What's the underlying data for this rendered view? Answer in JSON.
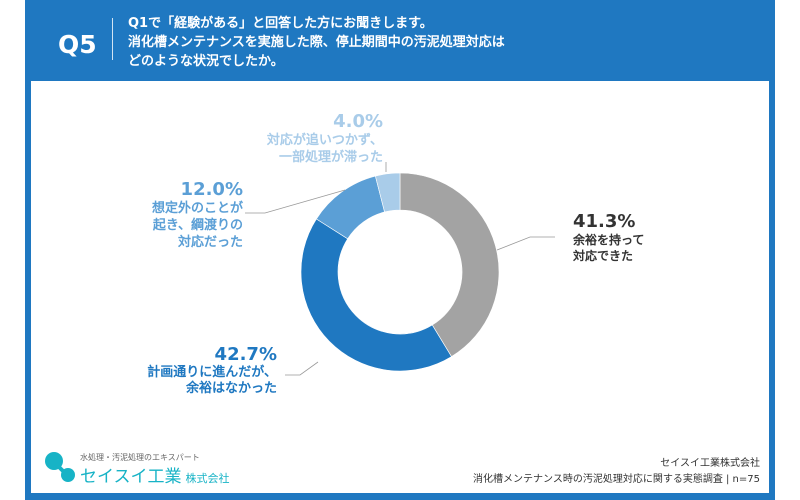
{
  "header": {
    "qnum": "Q5",
    "lines": [
      "Q1で「経験がある」と回答した方にお聞きします。",
      "消化槽メンテナンスを実施した際、停止期間中の汚泥処理対応は",
      "どのような状況でしたか。"
    ]
  },
  "chart_data": {
    "type": "pie",
    "donut": true,
    "categories": [
      "余裕を持って対応できた",
      "計画通りに進んだが、余裕はなかった",
      "想定外のことが起き、綱渡りの対応だった",
      "対応が追いつかず、一部処理が滞った"
    ],
    "values": [
      41.3,
      42.7,
      12.0,
      4.0
    ],
    "labels": [
      {
        "pct": "41.3%",
        "lines": [
          "余裕を持って",
          "対応できた"
        ]
      },
      {
        "pct": "42.7%",
        "lines": [
          "計画通りに進んだが、",
          "余裕はなかった"
        ]
      },
      {
        "pct": "12.0%",
        "lines": [
          "想定外のことが",
          "起き、綱渡りの",
          "対応だった"
        ]
      },
      {
        "pct": "4.0%",
        "lines": [
          "対応が追いつかず、",
          "一部処理が滞った"
        ]
      }
    ],
    "colors": [
      "#a3a3a3",
      "#1f78c1",
      "#5b9fd6",
      "#a9cce9"
    ],
    "label_colors": [
      "#333333",
      "#1f78c1",
      "#5b9fd6",
      "#a9cce9"
    ],
    "start": "top",
    "direction": "clockwise"
  },
  "footer": {
    "tagline": "水処理・汚泥処理のエキスパート",
    "brand": "セイスイ工業",
    "brand_suffix": "株式会社",
    "company": "セイスイ工業株式会社",
    "survey": "消化槽メンテナンス時の汚泥処理対応に関する実態調査 | n=75"
  }
}
